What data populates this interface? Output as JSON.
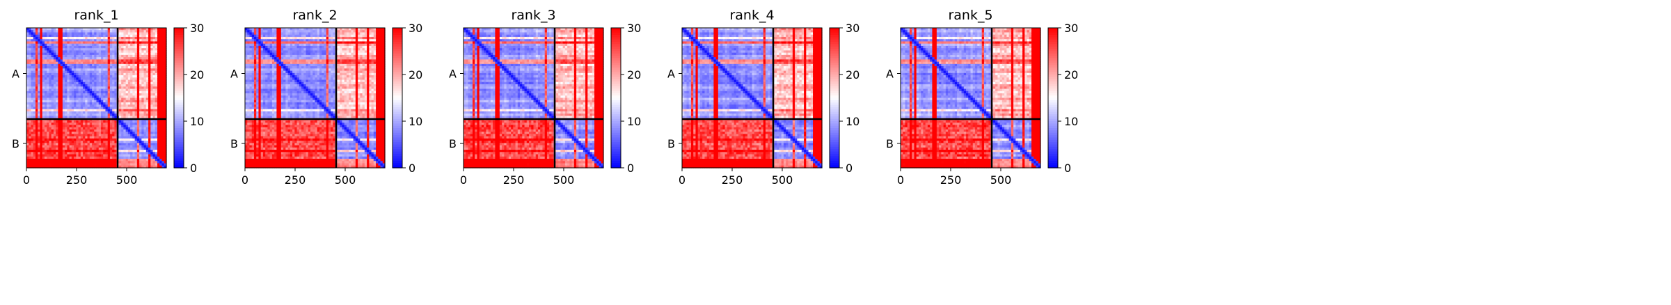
{
  "figure": {
    "colormap": {
      "name": "bwr",
      "low": "#0000ff",
      "mid": "#ffffff",
      "high": "#ff0000"
    }
  },
  "chart_data": [
    {
      "type": "heatmap",
      "title": "rank_1",
      "chain_labels": [
        "A",
        "B"
      ],
      "chain_boundary": 455,
      "total_length": 698,
      "xticks": [
        0,
        250,
        500
      ],
      "colorbar_ticks": [
        0,
        10,
        20,
        30
      ],
      "vmin": 0,
      "vmax": 30
    },
    {
      "type": "heatmap",
      "title": "rank_2",
      "chain_labels": [
        "A",
        "B"
      ],
      "chain_boundary": 455,
      "total_length": 698,
      "xticks": [
        0,
        250,
        500
      ],
      "colorbar_ticks": [
        0,
        10,
        20,
        30
      ],
      "vmin": 0,
      "vmax": 30
    },
    {
      "type": "heatmap",
      "title": "rank_3",
      "chain_labels": [
        "A",
        "B"
      ],
      "chain_boundary": 455,
      "total_length": 698,
      "xticks": [
        0,
        250,
        500
      ],
      "colorbar_ticks": [
        0,
        10,
        20,
        30
      ],
      "vmin": 0,
      "vmax": 30
    },
    {
      "type": "heatmap",
      "title": "rank_4",
      "chain_labels": [
        "A",
        "B"
      ],
      "chain_boundary": 455,
      "total_length": 698,
      "xticks": [
        0,
        250,
        500
      ],
      "colorbar_ticks": [
        0,
        10,
        20,
        30
      ],
      "vmin": 0,
      "vmax": 30
    },
    {
      "type": "heatmap",
      "title": "rank_5",
      "chain_labels": [
        "A",
        "B"
      ],
      "chain_boundary": 455,
      "total_length": 698,
      "xticks": [
        0,
        250,
        500
      ],
      "colorbar_ticks": [
        0,
        10,
        20,
        30
      ],
      "vmin": 0,
      "vmax": 30
    }
  ]
}
